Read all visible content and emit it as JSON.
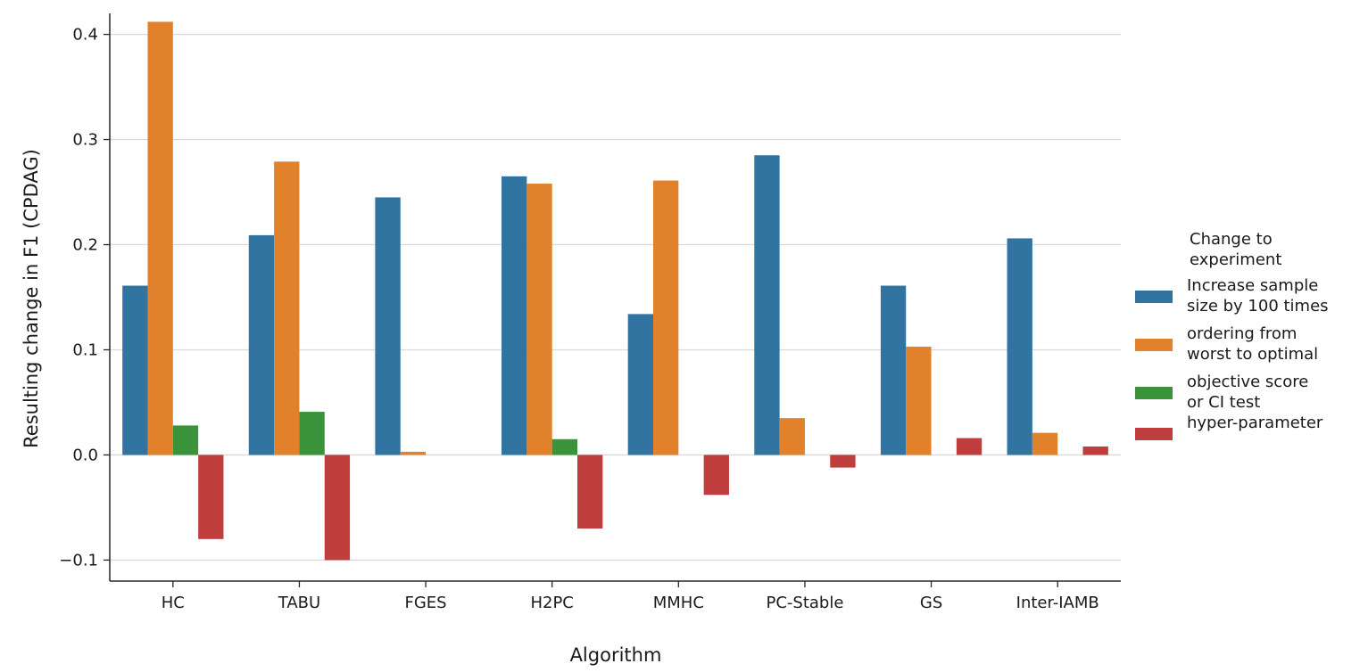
{
  "chart_data": {
    "type": "bar",
    "xlabel": "Algorithm",
    "ylabel": "Resulting change in F1 (CPDAG)",
    "categories": [
      "HC",
      "TABU",
      "FGES",
      "H2PC",
      "MMHC",
      "PC-Stable",
      "GS",
      "Inter-IAMB"
    ],
    "ylim": [
      -0.12,
      0.42
    ],
    "yticks": [
      -0.1,
      0.0,
      0.1,
      0.2,
      0.3,
      0.4
    ],
    "ytick_labels": [
      "−0.1",
      "0.0",
      "0.1",
      "0.2",
      "0.3",
      "0.4"
    ],
    "grid": "horizontal",
    "legend": {
      "title_line1": "Change to",
      "title_line2": "experiment",
      "placement": "right"
    },
    "series": [
      {
        "name_line1": "Increase sample",
        "name_line2": "size by 100 times",
        "color": "#3274a1",
        "values": [
          0.161,
          0.209,
          0.245,
          0.265,
          0.134,
          0.285,
          0.161,
          0.206
        ]
      },
      {
        "name_line1": "ordering from",
        "name_line2": "worst to optimal",
        "color": "#e1812c",
        "values": [
          0.412,
          0.279,
          0.003,
          0.258,
          0.261,
          0.035,
          0.103,
          0.021
        ]
      },
      {
        "name_line1": "objective score",
        "name_line2": "or CI test",
        "color": "#3a923a",
        "values": [
          0.028,
          0.041,
          0.0,
          0.015,
          0.0,
          0.0,
          0.0,
          0.0
        ]
      },
      {
        "name_line1": "hyper-parameter",
        "name_line2": "",
        "color": "#c03d3e",
        "values": [
          -0.08,
          -0.1,
          0.0,
          -0.07,
          -0.038,
          -0.012,
          0.016,
          0.008
        ]
      }
    ]
  }
}
